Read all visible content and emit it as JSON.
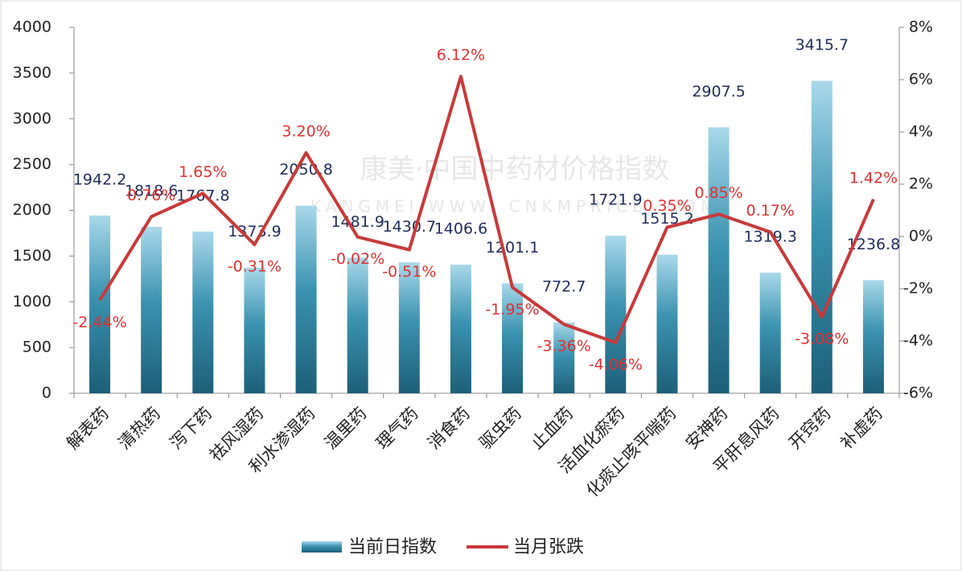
{
  "chart_data": {
    "type": "bar-line",
    "watermark": [
      "康美·中国中药材价格指数",
      "KANGMEI WWW. CNKMPRICE. COM"
    ],
    "categories": [
      "解表药",
      "清热药",
      "泻下药",
      "祛风湿药",
      "利水渗湿药",
      "温里药",
      "理气药",
      "消食药",
      "驱虫药",
      "止血药",
      "活血化瘀药",
      "化痰止咳平喘药",
      "安神药",
      "平肝息风药",
      "开窍药",
      "补虚药"
    ],
    "series": [
      {
        "name": "当前日指数",
        "type": "bar",
        "color": "#2a7f9a",
        "values": [
          1942.2,
          1818.6,
          1767.8,
          1373.9,
          2050.8,
          1481.9,
          1430.7,
          1406.6,
          1201.1,
          772.7,
          1721.9,
          1515.2,
          2907.5,
          1319.3,
          3415.7,
          1236.8
        ]
      },
      {
        "name": "当月张跌",
        "type": "line",
        "axis": "y2",
        "color": "#c83a3a",
        "values": [
          -2.44,
          0.76,
          1.65,
          -0.31,
          3.2,
          -0.02,
          -0.51,
          6.12,
          -1.95,
          -3.36,
          -4.06,
          0.35,
          0.85,
          0.17,
          -3.08,
          1.42
        ],
        "value_labels": [
          "-2.44%",
          "0.76%",
          "1.65%",
          "-0.31%",
          "3.20%",
          "-0.02%",
          "-0.51%",
          "6.12%",
          "-1.95%",
          "-3.36%",
          "-4.06%",
          "0.35%",
          "0.85%",
          "0.17%",
          "-3.08%",
          "1.42%"
        ]
      }
    ],
    "ylim": [
      0,
      4000
    ],
    "yticks": [
      0,
      500,
      1000,
      1500,
      2000,
      2500,
      3000,
      3500,
      4000
    ],
    "y2lim": [
      -6,
      8
    ],
    "y2ticks": [
      {
        "value": -6,
        "label": "-6%"
      },
      {
        "value": -4,
        "label": "-4%"
      },
      {
        "value": -2,
        "label": "-2%"
      },
      {
        "value": 0,
        "label": "0%"
      },
      {
        "value": 2,
        "label": "2%"
      },
      {
        "value": 4,
        "label": "4%"
      },
      {
        "value": 6,
        "label": "6%"
      },
      {
        "value": 8,
        "label": "8%"
      }
    ]
  }
}
